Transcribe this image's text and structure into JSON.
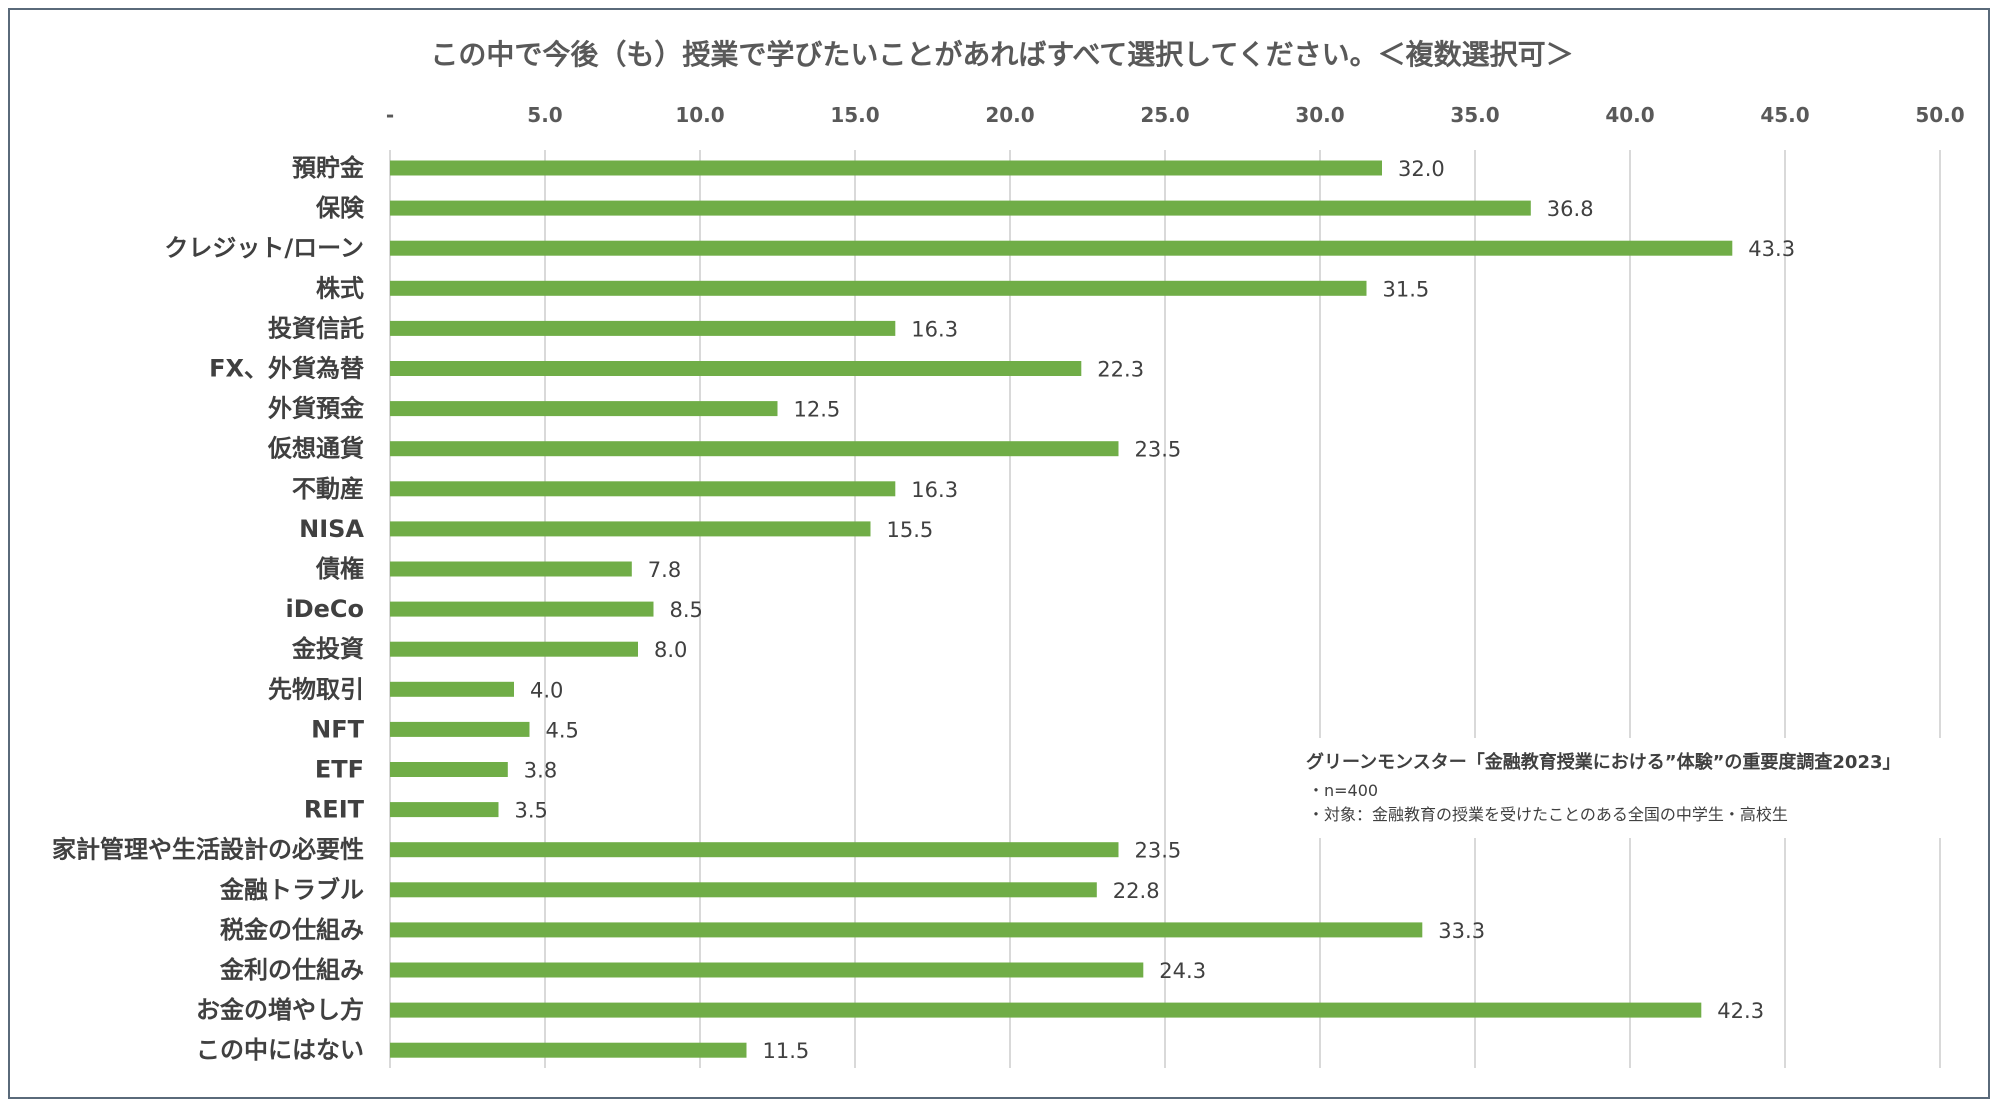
{
  "chart_data": {
    "type": "bar",
    "orientation": "horizontal",
    "title": "この中で今後（も）授業で学びたいことがあればすべて選択してください。＜複数選択可＞",
    "xlim": [
      0,
      50
    ],
    "ticks": [
      0,
      5,
      10,
      15,
      20,
      25,
      30,
      35,
      40,
      45,
      50
    ],
    "tick_labels": [
      "-",
      "5.0",
      "10.0",
      "15.0",
      "20.0",
      "25.0",
      "30.0",
      "35.0",
      "40.0",
      "45.0",
      "50.0"
    ],
    "categories": [
      "預貯金",
      "保険",
      "クレジット/ローン",
      "株式",
      "投資信託",
      "FX、外貨為替",
      "外貨預金",
      "仮想通貨",
      "不動産",
      "NISA",
      "債権",
      "iDeCo",
      "金投資",
      "先物取引",
      "NFT",
      "ETF",
      "REIT",
      "家計管理や生活設計の必要性",
      "金融トラブル",
      "税金の仕組み",
      "金利の仕組み",
      "お金の増やし方",
      "この中にはない"
    ],
    "values": [
      32.0,
      36.8,
      43.3,
      31.5,
      16.3,
      22.3,
      12.5,
      23.5,
      16.3,
      15.5,
      7.8,
      8.5,
      8.0,
      4.0,
      4.5,
      3.8,
      3.5,
      23.5,
      22.8,
      33.3,
      24.3,
      42.3,
      11.5
    ],
    "value_labels": [
      "32.0",
      "36.8",
      "43.3",
      "31.5",
      "16.3",
      "22.3",
      "12.5",
      "23.5",
      "16.3",
      "15.5",
      "7.8",
      "8.5",
      "8.0",
      "4.0",
      "4.5",
      "3.8",
      "3.5",
      "23.5",
      "22.8",
      "33.3",
      "24.3",
      "42.3",
      "11.5"
    ],
    "bar_color": "#70ad47",
    "grid": true,
    "note": {
      "heading": "グリーンモンスター「金融教育授業における”体験”の重要度調査2023」",
      "lines": [
        "・n=400",
        "・対象：金融教育の授業を受けたことのある全国の中学生・高校生"
      ]
    }
  }
}
